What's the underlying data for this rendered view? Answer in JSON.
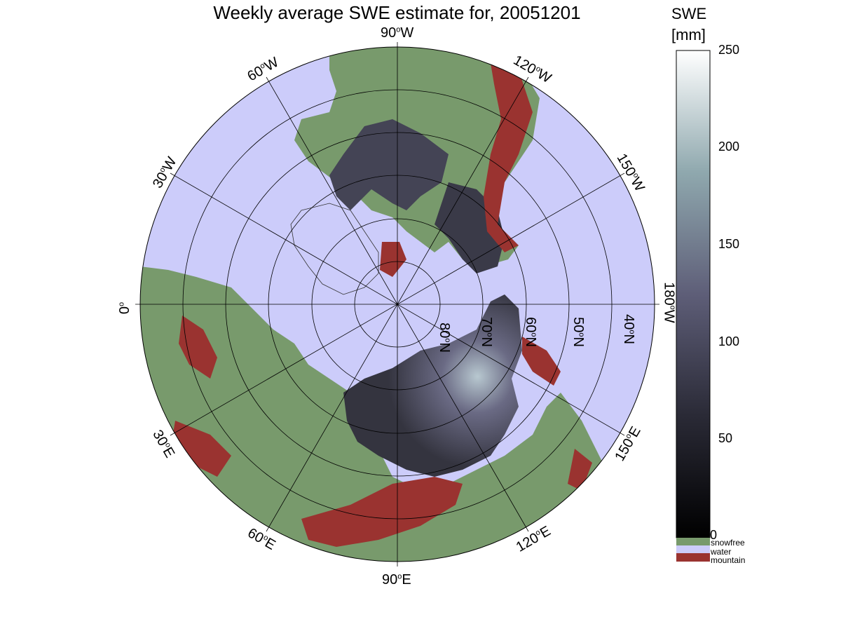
{
  "title": "Weekly average SWE estimate for, 20051201",
  "lon_labels": [
    {
      "deg": "90",
      "hem": "W"
    },
    {
      "deg": "120",
      "hem": "W"
    },
    {
      "deg": "150",
      "hem": "W"
    },
    {
      "deg": "180",
      "hem": "W"
    },
    {
      "deg": "150",
      "hem": "E"
    },
    {
      "deg": "120",
      "hem": "E"
    },
    {
      "deg": "90",
      "hem": "E"
    },
    {
      "deg": "60",
      "hem": "E"
    },
    {
      "deg": "30",
      "hem": "E"
    },
    {
      "deg": "0",
      "hem": ""
    },
    {
      "deg": "30",
      "hem": "W"
    },
    {
      "deg": "60",
      "hem": "W"
    }
  ],
  "lat_labels": [
    {
      "deg": "80",
      "hem": "N"
    },
    {
      "deg": "70",
      "hem": "N"
    },
    {
      "deg": "60",
      "hem": "N"
    },
    {
      "deg": "50",
      "hem": "N"
    },
    {
      "deg": "40",
      "hem": "N"
    }
  ],
  "colorbar": {
    "unit_line1": "SWE",
    "unit_line2": "[mm]",
    "ticks": [
      "250",
      "200",
      "150",
      "100",
      "50",
      "0"
    ],
    "min": 0,
    "max": 250
  },
  "legend": [
    {
      "label": "snowfree",
      "color": "#789a6c"
    },
    {
      "label": "water",
      "color": "#ccccfa"
    },
    {
      "label": "mountain",
      "color": "#9a3330"
    }
  ],
  "colors": {
    "ocean": "#ccccfa",
    "land": "#789a6c",
    "mountain": "#9a3330",
    "snow_low": "#2a2a36",
    "snow_mid": "#5a5a72",
    "snow_high": "#b8c8d0"
  }
}
